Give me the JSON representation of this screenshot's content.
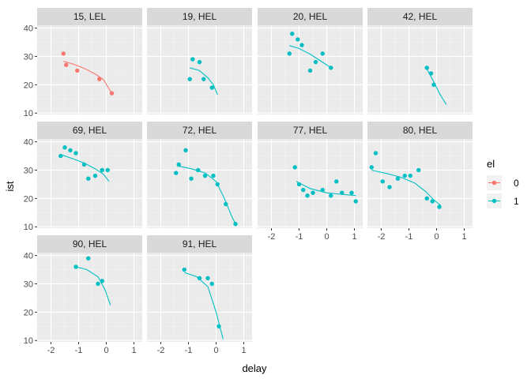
{
  "chart_data": {
    "type": "scatter",
    "xlabel": "delay",
    "ylabel": "ist",
    "xlim": [
      -2.5,
      1.3
    ],
    "ylim": [
      9.5,
      41
    ],
    "x_ticks": [
      -2,
      -1,
      0,
      1
    ],
    "y_ticks": [
      10,
      20,
      30,
      40
    ],
    "grid": true,
    "legend": {
      "title": "el",
      "placement": "right",
      "entries": [
        {
          "label": "0",
          "color": "#F8766D"
        },
        {
          "label": "1",
          "color": "#00BFC4"
        }
      ]
    },
    "panels": [
      {
        "label": "15, LEL",
        "el": "0",
        "points": [
          [
            -1.55,
            31
          ],
          [
            -1.45,
            27
          ],
          [
            -1.05,
            25
          ],
          [
            -0.25,
            22
          ],
          [
            0.2,
            17
          ]
        ],
        "curve": [
          [
            -1.55,
            28.3
          ],
          [
            -1.2,
            27.3
          ],
          [
            -0.8,
            25.8
          ],
          [
            -0.4,
            23.8
          ],
          [
            -0.1,
            21.8
          ],
          [
            0.2,
            17
          ]
        ]
      },
      {
        "label": "19, HEL",
        "el": "1",
        "points": [
          [
            -0.95,
            22
          ],
          [
            -0.85,
            29
          ],
          [
            -0.6,
            28
          ],
          [
            -0.45,
            22
          ],
          [
            -0.15,
            19
          ]
        ],
        "curve": [
          [
            -0.95,
            26
          ],
          [
            -0.6,
            25
          ],
          [
            -0.3,
            22.5
          ],
          [
            -0.1,
            20
          ],
          [
            0.05,
            16.5
          ]
        ]
      },
      {
        "label": "20, HEL",
        "el": "1",
        "points": [
          [
            -1.35,
            31
          ],
          [
            -1.25,
            38
          ],
          [
            -1.05,
            36
          ],
          [
            -0.9,
            34
          ],
          [
            -0.6,
            25
          ],
          [
            -0.4,
            28
          ],
          [
            -0.15,
            31
          ],
          [
            0.15,
            26
          ]
        ],
        "curve": [
          [
            -1.35,
            33.8
          ],
          [
            -1.0,
            32.8
          ],
          [
            -0.6,
            30.8
          ],
          [
            -0.2,
            28.3
          ],
          [
            0.15,
            26
          ]
        ]
      },
      {
        "label": "42, HEL",
        "el": "1",
        "points": [
          [
            -0.35,
            26
          ],
          [
            -0.2,
            24
          ],
          [
            -0.1,
            20
          ]
        ],
        "curve": [
          [
            -0.35,
            25.5
          ],
          [
            -0.1,
            21
          ],
          [
            0.1,
            17
          ],
          [
            0.35,
            13
          ]
        ]
      },
      {
        "label": "69, HEL",
        "el": "1",
        "points": [
          [
            -1.65,
            35
          ],
          [
            -1.5,
            38
          ],
          [
            -1.3,
            37
          ],
          [
            -1.1,
            36
          ],
          [
            -0.8,
            32
          ],
          [
            -0.65,
            27
          ],
          [
            -0.4,
            28
          ],
          [
            -0.15,
            30
          ],
          [
            0.05,
            30
          ]
        ],
        "curve": [
          [
            -1.65,
            35.5
          ],
          [
            -1.2,
            34
          ],
          [
            -0.8,
            32.5
          ],
          [
            -0.4,
            30.5
          ],
          [
            -0.1,
            28.5
          ],
          [
            0.1,
            26
          ]
        ]
      },
      {
        "label": "72, HEL",
        "el": "1",
        "points": [
          [
            -1.45,
            29
          ],
          [
            -1.35,
            32
          ],
          [
            -1.1,
            37
          ],
          [
            -0.9,
            27
          ],
          [
            -0.65,
            30
          ],
          [
            -0.4,
            28
          ],
          [
            -0.1,
            28
          ],
          [
            0.05,
            25
          ],
          [
            0.35,
            18
          ],
          [
            0.7,
            11
          ]
        ],
        "curve": [
          [
            -1.4,
            31.5
          ],
          [
            -0.9,
            30.5
          ],
          [
            -0.4,
            29
          ],
          [
            0.0,
            26
          ],
          [
            0.3,
            20
          ],
          [
            0.55,
            14
          ],
          [
            0.7,
            11
          ]
        ]
      },
      {
        "label": "77, HEL",
        "el": "1",
        "points": [
          [
            -1.15,
            31
          ],
          [
            -1.0,
            25
          ],
          [
            -0.85,
            23
          ],
          [
            -0.7,
            21
          ],
          [
            -0.5,
            22
          ],
          [
            -0.15,
            23
          ],
          [
            0.15,
            21
          ],
          [
            0.35,
            26
          ],
          [
            0.55,
            22
          ],
          [
            0.9,
            22
          ],
          [
            1.05,
            19
          ]
        ],
        "curve": [
          [
            -1.1,
            26
          ],
          [
            -0.6,
            23.5
          ],
          [
            0.0,
            22
          ],
          [
            0.5,
            21.5
          ],
          [
            1.05,
            21
          ]
        ]
      },
      {
        "label": "80, HEL",
        "el": "1",
        "points": [
          [
            -2.35,
            31
          ],
          [
            -2.2,
            36
          ],
          [
            -1.95,
            26
          ],
          [
            -1.7,
            24
          ],
          [
            -1.4,
            27
          ],
          [
            -1.15,
            28
          ],
          [
            -0.95,
            28
          ],
          [
            -0.65,
            30
          ],
          [
            -0.35,
            20
          ],
          [
            -0.15,
            19
          ],
          [
            0.1,
            17
          ]
        ],
        "curve": [
          [
            -2.35,
            30
          ],
          [
            -1.8,
            28.8
          ],
          [
            -1.3,
            27.5
          ],
          [
            -0.8,
            25.5
          ],
          [
            -0.4,
            22.5
          ],
          [
            -0.1,
            19.5
          ],
          [
            0.15,
            17.5
          ]
        ]
      },
      {
        "label": "90, HEL",
        "el": "1",
        "points": [
          [
            -1.1,
            36
          ],
          [
            -0.65,
            39
          ],
          [
            -0.3,
            30
          ],
          [
            -0.15,
            31
          ]
        ],
        "curve": [
          [
            -1.1,
            36
          ],
          [
            -0.7,
            35
          ],
          [
            -0.3,
            32.5
          ],
          [
            -0.05,
            28
          ],
          [
            0.15,
            22.5
          ]
        ]
      },
      {
        "label": "91, HEL",
        "el": "1",
        "points": [
          [
            -1.15,
            35
          ],
          [
            -0.6,
            32
          ],
          [
            -0.3,
            32
          ],
          [
            -0.15,
            30
          ],
          [
            0.1,
            15
          ]
        ],
        "curve": [
          [
            -1.15,
            34
          ],
          [
            -0.7,
            32.5
          ],
          [
            -0.3,
            29
          ],
          [
            0.0,
            20
          ],
          [
            0.25,
            10.5
          ]
        ]
      }
    ]
  },
  "colors": {
    "el0": "#F8766D",
    "el1": "#00BFC4",
    "panel_bg": "#EBEBEB",
    "strip_bg": "#D9D9D9",
    "grid_major": "#FFFFFF"
  }
}
